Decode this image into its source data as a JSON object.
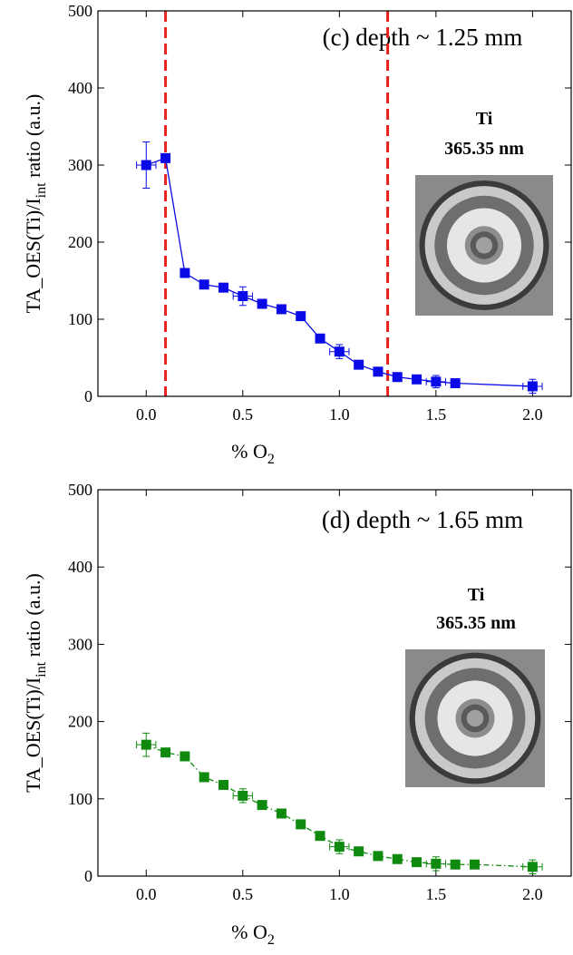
{
  "chart_data": [
    {
      "type": "line",
      "annotation": "(c) depth ~ 1.25 mm",
      "inset_labels": [
        "Ti",
        "365.35 nm"
      ],
      "ylabel": {
        "text": "TA_OES(Ti)/I",
        "sub": "int",
        "tail": " ratio (a.u.)"
      },
      "xlabel": {
        "text": "% O",
        "sub": "2"
      },
      "xlim": [
        -0.25,
        2.2
      ],
      "ylim": [
        0,
        500
      ],
      "xticks": [
        {
          "value": 0,
          "label": "0.0"
        },
        {
          "value": 0.5,
          "label": "0.5"
        },
        {
          "value": 1,
          "label": "1.0"
        },
        {
          "value": 1.5,
          "label": "1.5"
        },
        {
          "value": 2,
          "label": "2.0"
        }
      ],
      "yticks": [
        0,
        100,
        200,
        300,
        400,
        500
      ],
      "vlines": [
        0.1,
        1.25
      ],
      "vline_color": "#e8201c",
      "line_style": "solid",
      "series": [
        {
          "color": "#0a0ae6",
          "x": [
            0,
            0.1,
            0.2,
            0.3,
            0.4,
            0.5,
            0.6,
            0.7,
            0.8,
            0.9,
            1.0,
            1.1,
            1.2,
            1.3,
            1.4,
            1.5,
            1.6,
            2.0
          ],
          "values": [
            300,
            309,
            160,
            145,
            141,
            130,
            120,
            113,
            104,
            75,
            58,
            41,
            32,
            25,
            22,
            19,
            17,
            13
          ],
          "yerr": [
            30,
            null,
            null,
            null,
            null,
            12,
            null,
            null,
            null,
            null,
            9,
            null,
            null,
            null,
            null,
            8,
            null,
            9
          ],
          "xerr": [
            0.05,
            null,
            null,
            null,
            null,
            0.05,
            null,
            null,
            null,
            null,
            0.05,
            null,
            null,
            null,
            null,
            0.05,
            null,
            0.05
          ]
        }
      ]
    },
    {
      "type": "line",
      "annotation": "(d) depth ~ 1.65 mm",
      "inset_labels": [
        "Ti",
        "365.35 nm"
      ],
      "ylabel": {
        "text": "TA_OES(Ti)/I",
        "sub": "int",
        "tail": " ratio (a.u.)"
      },
      "xlabel": {
        "text": "% O",
        "sub": "2"
      },
      "xlim": [
        -0.25,
        2.2
      ],
      "ylim": [
        0,
        500
      ],
      "xticks": [
        {
          "value": 0,
          "label": "0.0"
        },
        {
          "value": 0.5,
          "label": "0.5"
        },
        {
          "value": 1,
          "label": "1.0"
        },
        {
          "value": 1.5,
          "label": "1.5"
        },
        {
          "value": 2,
          "label": "2.0"
        }
      ],
      "yticks": [
        0,
        100,
        200,
        300,
        400,
        500
      ],
      "line_style": "dashdot",
      "series": [
        {
          "color": "#0f8a0f",
          "x": [
            0,
            0.1,
            0.2,
            0.3,
            0.4,
            0.5,
            0.6,
            0.7,
            0.8,
            0.9,
            1.0,
            1.1,
            1.2,
            1.3,
            1.4,
            1.5,
            1.6,
            1.7,
            2.0
          ],
          "values": [
            170,
            160,
            155,
            128,
            118,
            104,
            92,
            81,
            67,
            52,
            38,
            32,
            26,
            22,
            18,
            16,
            15,
            15,
            12
          ],
          "yerr": [
            15,
            null,
            null,
            null,
            null,
            9,
            null,
            null,
            null,
            null,
            9,
            null,
            null,
            null,
            null,
            9,
            null,
            null,
            9
          ],
          "xerr": [
            0.05,
            null,
            null,
            null,
            null,
            0.05,
            null,
            null,
            null,
            null,
            0.05,
            null,
            null,
            null,
            null,
            0.05,
            null,
            null,
            0.05
          ]
        }
      ]
    }
  ]
}
